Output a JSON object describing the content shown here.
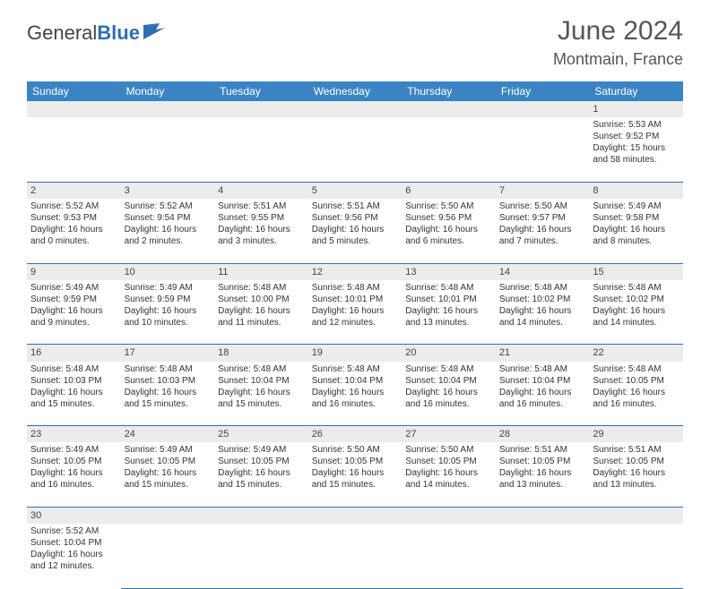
{
  "brand": {
    "part1": "General",
    "part2": "Blue"
  },
  "title": "June 2024",
  "location": "Montmain, France",
  "colors": {
    "header_bg": "#3b84c4",
    "row_head_bg": "#ececec",
    "border": "#2f6fb0",
    "text": "#333333",
    "title_text": "#555555"
  },
  "day_headers": [
    "Sunday",
    "Monday",
    "Tuesday",
    "Wednesday",
    "Thursday",
    "Friday",
    "Saturday"
  ],
  "weeks": [
    [
      null,
      null,
      null,
      null,
      null,
      null,
      {
        "n": "1",
        "sr": "Sunrise: 5:53 AM",
        "ss": "Sunset: 9:52 PM",
        "dl": "Daylight: 15 hours and 58 minutes."
      }
    ],
    [
      {
        "n": "2",
        "sr": "Sunrise: 5:52 AM",
        "ss": "Sunset: 9:53 PM",
        "dl": "Daylight: 16 hours and 0 minutes."
      },
      {
        "n": "3",
        "sr": "Sunrise: 5:52 AM",
        "ss": "Sunset: 9:54 PM",
        "dl": "Daylight: 16 hours and 2 minutes."
      },
      {
        "n": "4",
        "sr": "Sunrise: 5:51 AM",
        "ss": "Sunset: 9:55 PM",
        "dl": "Daylight: 16 hours and 3 minutes."
      },
      {
        "n": "5",
        "sr": "Sunrise: 5:51 AM",
        "ss": "Sunset: 9:56 PM",
        "dl": "Daylight: 16 hours and 5 minutes."
      },
      {
        "n": "6",
        "sr": "Sunrise: 5:50 AM",
        "ss": "Sunset: 9:56 PM",
        "dl": "Daylight: 16 hours and 6 minutes."
      },
      {
        "n": "7",
        "sr": "Sunrise: 5:50 AM",
        "ss": "Sunset: 9:57 PM",
        "dl": "Daylight: 16 hours and 7 minutes."
      },
      {
        "n": "8",
        "sr": "Sunrise: 5:49 AM",
        "ss": "Sunset: 9:58 PM",
        "dl": "Daylight: 16 hours and 8 minutes."
      }
    ],
    [
      {
        "n": "9",
        "sr": "Sunrise: 5:49 AM",
        "ss": "Sunset: 9:59 PM",
        "dl": "Daylight: 16 hours and 9 minutes."
      },
      {
        "n": "10",
        "sr": "Sunrise: 5:49 AM",
        "ss": "Sunset: 9:59 PM",
        "dl": "Daylight: 16 hours and 10 minutes."
      },
      {
        "n": "11",
        "sr": "Sunrise: 5:48 AM",
        "ss": "Sunset: 10:00 PM",
        "dl": "Daylight: 16 hours and 11 minutes."
      },
      {
        "n": "12",
        "sr": "Sunrise: 5:48 AM",
        "ss": "Sunset: 10:01 PM",
        "dl": "Daylight: 16 hours and 12 minutes."
      },
      {
        "n": "13",
        "sr": "Sunrise: 5:48 AM",
        "ss": "Sunset: 10:01 PM",
        "dl": "Daylight: 16 hours and 13 minutes."
      },
      {
        "n": "14",
        "sr": "Sunrise: 5:48 AM",
        "ss": "Sunset: 10:02 PM",
        "dl": "Daylight: 16 hours and 14 minutes."
      },
      {
        "n": "15",
        "sr": "Sunrise: 5:48 AM",
        "ss": "Sunset: 10:02 PM",
        "dl": "Daylight: 16 hours and 14 minutes."
      }
    ],
    [
      {
        "n": "16",
        "sr": "Sunrise: 5:48 AM",
        "ss": "Sunset: 10:03 PM",
        "dl": "Daylight: 16 hours and 15 minutes."
      },
      {
        "n": "17",
        "sr": "Sunrise: 5:48 AM",
        "ss": "Sunset: 10:03 PM",
        "dl": "Daylight: 16 hours and 15 minutes."
      },
      {
        "n": "18",
        "sr": "Sunrise: 5:48 AM",
        "ss": "Sunset: 10:04 PM",
        "dl": "Daylight: 16 hours and 15 minutes."
      },
      {
        "n": "19",
        "sr": "Sunrise: 5:48 AM",
        "ss": "Sunset: 10:04 PM",
        "dl": "Daylight: 16 hours and 16 minutes."
      },
      {
        "n": "20",
        "sr": "Sunrise: 5:48 AM",
        "ss": "Sunset: 10:04 PM",
        "dl": "Daylight: 16 hours and 16 minutes."
      },
      {
        "n": "21",
        "sr": "Sunrise: 5:48 AM",
        "ss": "Sunset: 10:04 PM",
        "dl": "Daylight: 16 hours and 16 minutes."
      },
      {
        "n": "22",
        "sr": "Sunrise: 5:48 AM",
        "ss": "Sunset: 10:05 PM",
        "dl": "Daylight: 16 hours and 16 minutes."
      }
    ],
    [
      {
        "n": "23",
        "sr": "Sunrise: 5:49 AM",
        "ss": "Sunset: 10:05 PM",
        "dl": "Daylight: 16 hours and 16 minutes."
      },
      {
        "n": "24",
        "sr": "Sunrise: 5:49 AM",
        "ss": "Sunset: 10:05 PM",
        "dl": "Daylight: 16 hours and 15 minutes."
      },
      {
        "n": "25",
        "sr": "Sunrise: 5:49 AM",
        "ss": "Sunset: 10:05 PM",
        "dl": "Daylight: 16 hours and 15 minutes."
      },
      {
        "n": "26",
        "sr": "Sunrise: 5:50 AM",
        "ss": "Sunset: 10:05 PM",
        "dl": "Daylight: 16 hours and 15 minutes."
      },
      {
        "n": "27",
        "sr": "Sunrise: 5:50 AM",
        "ss": "Sunset: 10:05 PM",
        "dl": "Daylight: 16 hours and 14 minutes."
      },
      {
        "n": "28",
        "sr": "Sunrise: 5:51 AM",
        "ss": "Sunset: 10:05 PM",
        "dl": "Daylight: 16 hours and 13 minutes."
      },
      {
        "n": "29",
        "sr": "Sunrise: 5:51 AM",
        "ss": "Sunset: 10:05 PM",
        "dl": "Daylight: 16 hours and 13 minutes."
      }
    ],
    [
      {
        "n": "30",
        "sr": "Sunrise: 5:52 AM",
        "ss": "Sunset: 10:04 PM",
        "dl": "Daylight: 16 hours and 12 minutes."
      },
      null,
      null,
      null,
      null,
      null,
      null
    ]
  ]
}
